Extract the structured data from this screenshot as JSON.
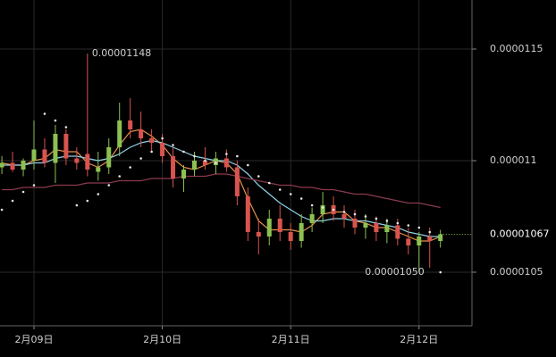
{
  "chart_data": {
    "type": "candlestick",
    "xlim": [
      -6.35,
      81.9
    ],
    "ylim": [
      1.026e-05,
      1.172e-05
    ],
    "xticks": [
      {
        "value": 0,
        "label": "2月09日"
      },
      {
        "value": 24,
        "label": "2月10日"
      },
      {
        "value": 48,
        "label": "2月11日"
      },
      {
        "value": 72,
        "label": "2月12日"
      }
    ],
    "yticks": [
      1.15e-05,
      1.1e-05,
      1.05e-05
    ],
    "grid": true,
    "up_color": "#8cc152",
    "down_color": "#d9534f",
    "x": [
      -6,
      -4,
      -2,
      0,
      2,
      4,
      6,
      8,
      10,
      12,
      14,
      16,
      18,
      20,
      22,
      24,
      26,
      28,
      30,
      32,
      34,
      36,
      38,
      40,
      42,
      44,
      46,
      48,
      50,
      52,
      54,
      56,
      58,
      60,
      62,
      64,
      66,
      68,
      70,
      72,
      74,
      76
    ],
    "open": [
      1.097e-05,
      1.099e-05,
      1.096e-05,
      1.1e-05,
      1.105e-05,
      1.099e-05,
      1.112e-05,
      1.101e-05,
      1.103e-05,
      1.095e-05,
      1.097e-05,
      1.106e-05,
      1.118e-05,
      1.114e-05,
      1.11e-05,
      1.108e-05,
      1.102e-05,
      1.092e-05,
      1.096e-05,
      1.1e-05,
      1.098e-05,
      1.101e-05,
      1.097e-05,
      1.084e-05,
      1.068e-05,
      1.066e-05,
      1.074e-05,
      1.068e-05,
      1.064e-05,
      1.072e-05,
      1.076e-05,
      1.08e-05,
      1.076e-05,
      1.074e-05,
      1.07e-05,
      1.072e-05,
      1.068e-05,
      1.071e-05,
      1.065e-05,
      1.062e-05,
      1.066e-05,
      1.064e-05
    ],
    "high": [
      1.102e-05,
      1.104e-05,
      1.101e-05,
      1.118e-05,
      1.11e-05,
      1.116e-05,
      1.114e-05,
      1.106e-05,
      1.148e-05,
      1.104e-05,
      1.11e-05,
      1.126e-05,
      1.128e-05,
      1.122e-05,
      1.114e-05,
      1.112e-05,
      1.106e-05,
      1.098e-05,
      1.104e-05,
      1.106e-05,
      1.104e-05,
      1.105e-05,
      1.1e-05,
      1.088e-05,
      1.074e-05,
      1.078e-05,
      1.08e-05,
      1.072e-05,
      1.076e-05,
      1.079e-05,
      1.086e-05,
      1.084e-05,
      1.08e-05,
      1.078e-05,
      1.076e-05,
      1.075e-05,
      1.074e-05,
      1.074e-05,
      1.07e-05,
      1.068e-05,
      1.07e-05,
      1.069e-05
    ],
    "low": [
      1.094e-05,
      1.095e-05,
      1.093e-05,
      1.096e-05,
      1.097e-05,
      1.09e-05,
      1.098e-05,
      1.096e-05,
      1.093e-05,
      1.091e-05,
      1.094e-05,
      1.102e-05,
      1.11e-05,
      1.106e-05,
      1.104e-05,
      1.099e-05,
      1.088e-05,
      1.086e-05,
      1.093e-05,
      1.096e-05,
      1.094e-05,
      1.095e-05,
      1.08e-05,
      1.064e-05,
      1.058e-05,
      1.062e-05,
      1.064e-05,
      1.06e-05,
      1.061e-05,
      1.068e-05,
      1.072e-05,
      1.073e-05,
      1.07e-05,
      1.067e-05,
      1.065e-05,
      1.064e-05,
      1.063e-05,
      1.062e-05,
      1.058e-05,
      1.05e-05,
      1.052e-05,
      1.061e-05
    ],
    "close": [
      1.099e-05,
      1.096e-05,
      1.1e-05,
      1.105e-05,
      1.099e-05,
      1.112e-05,
      1.101e-05,
      1.099e-05,
      1.096e-05,
      1.097e-05,
      1.106e-05,
      1.118e-05,
      1.114e-05,
      1.11e-05,
      1.108e-05,
      1.102e-05,
      1.092e-05,
      1.096e-05,
      1.1e-05,
      1.098e-05,
      1.101e-05,
      1.097e-05,
      1.084e-05,
      1.068e-05,
      1.066e-05,
      1.074e-05,
      1.068e-05,
      1.064e-05,
      1.072e-05,
      1.076e-05,
      1.08e-05,
      1.076e-05,
      1.074e-05,
      1.07e-05,
      1.072e-05,
      1.068e-05,
      1.071e-05,
      1.065e-05,
      1.062e-05,
      1.066e-05,
      1.064e-05,
      1.067e-05
    ],
    "lines": [
      {
        "color": "#e8914a",
        "values": [
          1.099e-05,
          1.098e-05,
          1.098e-05,
          1.1e-05,
          1.101e-05,
          1.105e-05,
          1.104e-05,
          1.104e-05,
          1.099e-05,
          1.097e-05,
          1.1e-05,
          1.107e-05,
          1.113e-05,
          1.114e-05,
          1.111e-05,
          1.107e-05,
          1.101e-05,
          1.097e-05,
          1.096e-05,
          1.098e-05,
          1.1e-05,
          1.099e-05,
          1.094e-05,
          1.083e-05,
          1.073e-05,
          1.069e-05,
          1.069e-05,
          1.069e-05,
          1.068e-05,
          1.071e-05,
          1.076e-05,
          1.077e-05,
          1.077e-05,
          1.073e-05,
          1.072e-05,
          1.07e-05,
          1.07e-05,
          1.068e-05,
          1.066e-05,
          1.064e-05,
          1.064e-05,
          1.066e-05
        ]
      },
      {
        "color": "#8fd3e8",
        "values": [
          1.098e-05,
          1.098e-05,
          1.098e-05,
          1.099e-05,
          1.099e-05,
          1.101e-05,
          1.102e-05,
          1.102e-05,
          1.101e-05,
          1.1e-05,
          1.101e-05,
          1.103e-05,
          1.106e-05,
          1.108e-05,
          1.109e-05,
          1.108e-05,
          1.106e-05,
          1.104e-05,
          1.102e-05,
          1.101e-05,
          1.1e-05,
          1.1e-05,
          1.098e-05,
          1.094e-05,
          1.089e-05,
          1.085e-05,
          1.081e-05,
          1.078e-05,
          1.075e-05,
          1.073e-05,
          1.073e-05,
          1.074e-05,
          1.074e-05,
          1.073e-05,
          1.073e-05,
          1.072e-05,
          1.071e-05,
          1.07e-05,
          1.068e-05,
          1.067e-05,
          1.066e-05,
          1.066e-05
        ]
      },
      {
        "color": "#8b3a4e",
        "values": [
          1.087e-05,
          1.087e-05,
          1.088e-05,
          1.088e-05,
          1.088e-05,
          1.089e-05,
          1.089e-05,
          1.089e-05,
          1.09e-05,
          1.09e-05,
          1.09e-05,
          1.091e-05,
          1.091e-05,
          1.091e-05,
          1.092e-05,
          1.092e-05,
          1.092e-05,
          1.093e-05,
          1.093e-05,
          1.093e-05,
          1.094e-05,
          1.094e-05,
          1.093e-05,
          1.092e-05,
          1.091e-05,
          1.09e-05,
          1.089e-05,
          1.089e-05,
          1.088e-05,
          1.088e-05,
          1.087e-05,
          1.087e-05,
          1.086e-05,
          1.085e-05,
          1.085e-05,
          1.084e-05,
          1.083e-05,
          1.082e-05,
          1.081e-05,
          1.081e-05,
          1.08e-05,
          1.079e-05
        ]
      }
    ],
    "sar": {
      "color": "#e6e6e6",
      "values": [
        1.078e-05,
        1.082e-05,
        1.086e-05,
        1.089e-05,
        1.121e-05,
        1.118e-05,
        1.115e-05,
        1.08e-05,
        1.082e-05,
        1.085e-05,
        1.089e-05,
        1.093e-05,
        1.097e-05,
        1.101e-05,
        1.104e-05,
        1.11e-05,
        1.107e-05,
        1.104e-05,
        1.102e-05,
        1.1e-05,
        1.099e-05,
        1.103e-05,
        1.102e-05,
        1.098e-05,
        1.093e-05,
        1.09e-05,
        1.087e-05,
        1.085e-05,
        1.083e-05,
        1.08e-05,
        1.079e-05,
        1.078e-05,
        1.077e-05,
        1.076e-05,
        1.075e-05,
        1.074e-05,
        1.073e-05,
        1.072e-05,
        1.071e-05,
        1.07e-05,
        1.068e-05,
        1.05e-05
      ]
    },
    "max_marker": {
      "x": 10,
      "value": 1.148e-05
    },
    "min_marker": {
      "x": 72,
      "value": {
        "value": 1.05e-05,
        "label": "0.00001050"
      }
    },
    "last_price": 1.067e-05
  }
}
